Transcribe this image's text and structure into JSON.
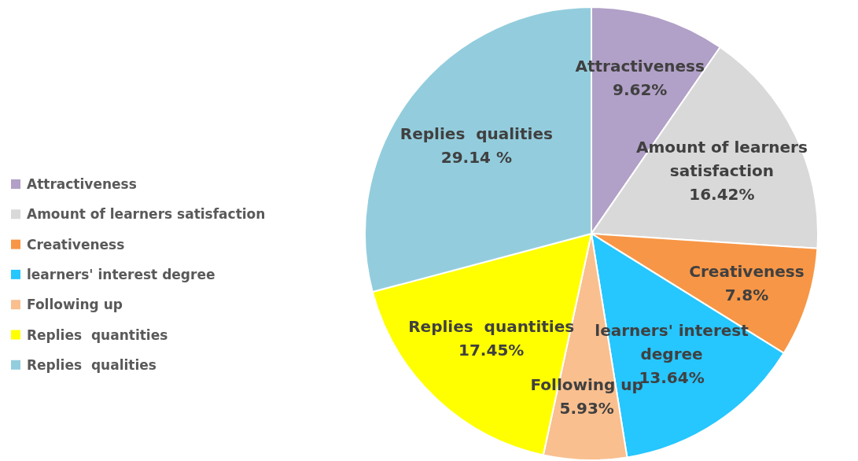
{
  "chart_data": {
    "type": "pie",
    "categories": [
      "Attractiveness",
      "Amount of learners satisfaction",
      "Creativeness",
      "learners' interest degree",
      "Following up",
      "Replies  quantities",
      "Replies  qualities"
    ],
    "values": [
      9.62,
      16.42,
      7.8,
      13.64,
      5.93,
      17.45,
      29.14
    ],
    "colors": [
      "#b1a0c7",
      "#d9d9d9",
      "#f79646",
      "#26c6ff",
      "#f9bf8f",
      "#ffff00",
      "#93cddd"
    ],
    "value_labels": [
      "9.62%",
      "16.42%",
      "7.8%",
      "13.64%",
      "5.93%",
      "17.45%",
      "29.14 %"
    ],
    "legend": "left"
  }
}
